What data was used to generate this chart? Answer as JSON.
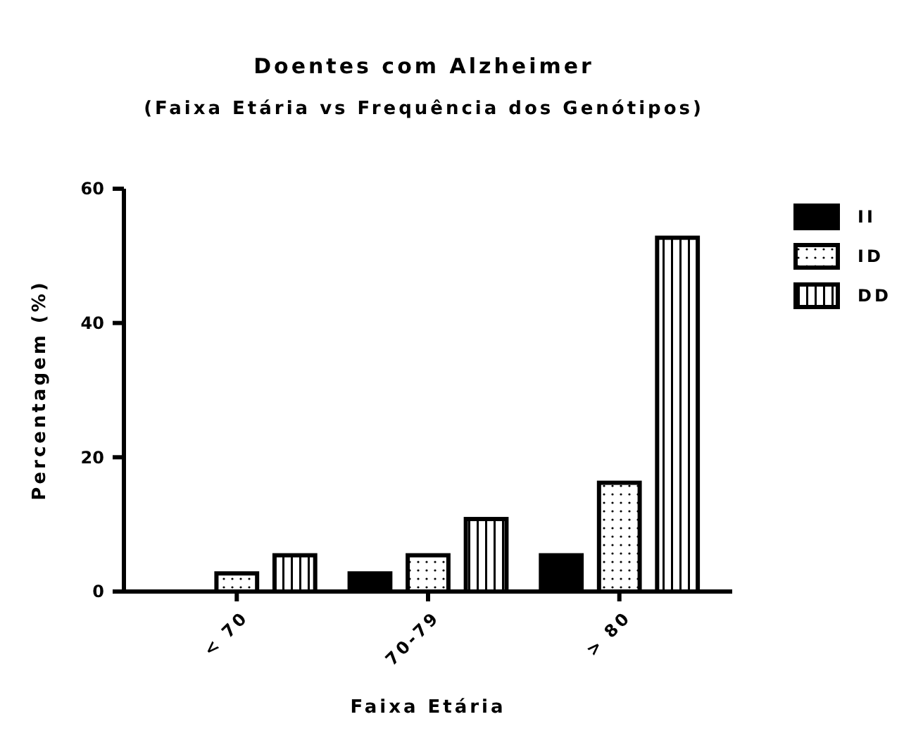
{
  "chart_data": {
    "type": "bar",
    "title": "Doentes com Alzheimer",
    "subtitle": "(Faixa Etária vs Frequência dos Genótipos)",
    "xlabel": "Faixa Etária",
    "ylabel": "Percentagem (%)",
    "categories": [
      "< 70",
      "70-79",
      "> 80"
    ],
    "series": [
      {
        "name": "II",
        "color": "#000000",
        "values": [
          0,
          2.7,
          5.4
        ]
      },
      {
        "name": "ID",
        "color": "#000000",
        "values": [
          2.7,
          5.4,
          16.2
        ]
      },
      {
        "name": "DD",
        "color": "#000000",
        "values": [
          5.4,
          10.8,
          52.7
        ]
      }
    ],
    "ylim": [
      0,
      60
    ],
    "yticks": [
      0,
      20,
      40,
      60
    ],
    "grid": false,
    "legend": "top right"
  }
}
